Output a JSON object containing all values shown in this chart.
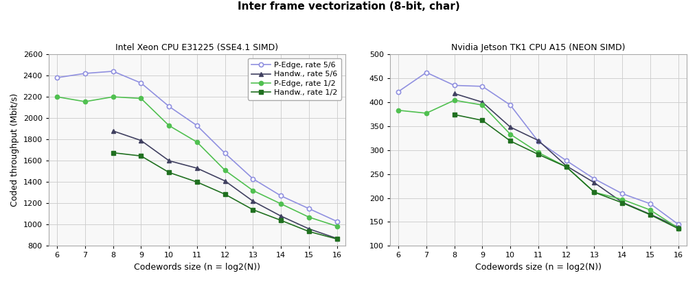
{
  "title": "Inter frame vectorization (8-bit, char)",
  "subplot1_title": "Intel Xeon CPU E31225 (SSE4.1 SIMD)",
  "subplot2_title": "Nvidia Jetson TK1 CPU A15 (NEON SIMD)",
  "xlabel": "Codewords size (n = log2(N))",
  "ylabel": "Coded throughput (Mbit/s)",
  "x": [
    6,
    7,
    8,
    9,
    10,
    11,
    12,
    13,
    14,
    15,
    16
  ],
  "legend_labels": [
    "P-Edge, rate 5/6",
    "Handw., rate 5/6",
    "P-Edge, rate 1/2",
    "Handw., rate 1/2"
  ],
  "plot1": {
    "pedge_56": [
      2380,
      2420,
      2440,
      2330,
      2110,
      1930,
      1670,
      1430,
      1270,
      1150,
      1030
    ],
    "handw_56": [
      null,
      null,
      1880,
      1790,
      1600,
      1530,
      1410,
      1220,
      1080,
      960,
      870
    ],
    "pedge_12": [
      2200,
      2155,
      2200,
      2185,
      1930,
      1775,
      1510,
      1320,
      1195,
      1070,
      985
    ],
    "handw_12": [
      null,
      null,
      1675,
      1645,
      1490,
      1400,
      1285,
      1140,
      1040,
      935,
      865
    ]
  },
  "plot2": {
    "pedge_56": [
      422,
      462,
      435,
      433,
      394,
      318,
      278,
      240,
      209,
      188,
      145
    ],
    "handw_56": [
      null,
      null,
      418,
      400,
      348,
      320,
      267,
      232,
      191,
      166,
      139
    ],
    "pedge_12": [
      383,
      377,
      404,
      394,
      333,
      295,
      265,
      212,
      197,
      175,
      137
    ],
    "handw_12": [
      null,
      null,
      374,
      362,
      319,
      291,
      265,
      212,
      190,
      165,
      136
    ]
  },
  "color_pedge56": "#9090e0",
  "color_handw56": "#404060",
  "color_pedge12": "#50c050",
  "color_handw12": "#207020",
  "plot1_ylim": [
    800,
    2600
  ],
  "plot2_ylim": [
    100,
    500
  ],
  "plot1_yticks": [
    800,
    1000,
    1200,
    1400,
    1600,
    1800,
    2000,
    2200,
    2400,
    2600
  ],
  "plot2_yticks": [
    100,
    150,
    200,
    250,
    300,
    350,
    400,
    450,
    500
  ],
  "bg_color": "#f8f8f8",
  "grid_color": "#cccccc",
  "title_fontsize": 11,
  "subtitle_fontsize": 9,
  "tick_fontsize": 8,
  "label_fontsize": 9,
  "legend_fontsize": 8
}
